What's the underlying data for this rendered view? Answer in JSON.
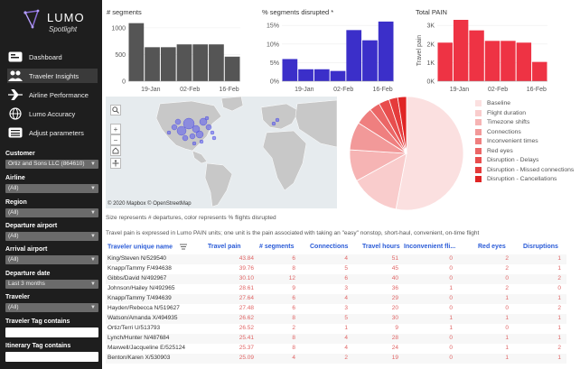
{
  "brand": {
    "title": "LUMO",
    "subtitle": "Spotlight"
  },
  "nav": [
    {
      "label": "Dashboard",
      "icon": "dashboard-icon"
    },
    {
      "label": "Traveler Insights",
      "icon": "people-icon"
    },
    {
      "label": "Airline Performance",
      "icon": "airplane-icon"
    },
    {
      "label": "Lumo Accuracy",
      "icon": "globe-icon"
    },
    {
      "label": "Adjust parameters",
      "icon": "sliders-icon"
    }
  ],
  "filters": {
    "customer": {
      "label": "Customer",
      "value": "Ortiz and Sons LLC (864610)"
    },
    "airline": {
      "label": "Airline",
      "value": "(All)"
    },
    "region": {
      "label": "Region",
      "value": "(All)"
    },
    "departure_airport": {
      "label": "Departure airport",
      "value": "(All)"
    },
    "arrival_airport": {
      "label": "Arrival airport",
      "value": "(All)"
    },
    "departure_date": {
      "label": "Departure date",
      "value": "Last 3 months"
    },
    "traveler": {
      "label": "Traveler",
      "value": "(All)"
    },
    "traveler_tag": {
      "label": "Traveler Tag contains"
    },
    "itinerary_tag": {
      "label": "Itinerary Tag contains"
    }
  },
  "chart_data": [
    {
      "type": "bar",
      "title": "# segments",
      "x_ticks": [
        "19-Jan",
        "02-Feb",
        "16-Feb"
      ],
      "y_ticks": [
        "0",
        "500",
        "1000"
      ],
      "ylim": [
        0,
        1300
      ],
      "values": [
        1230,
        720,
        720,
        780,
        780,
        780,
        520
      ],
      "color": "#555555"
    },
    {
      "type": "bar",
      "title": "% segments disrupted *",
      "x_ticks": [
        "19-Jan",
        "02-Feb",
        "16-Feb"
      ],
      "y_ticks": [
        "0%",
        "5%",
        "10%",
        "15%"
      ],
      "ylim": [
        0,
        18
      ],
      "values": [
        6.5,
        3.5,
        3.5,
        3.0,
        15.0,
        12.0,
        17.5
      ],
      "color": "#3b2fc9"
    },
    {
      "type": "bar",
      "title": "Total PAIN",
      "ylabel": "Travel pain",
      "x_ticks": [
        "19-Jan",
        "02-Feb",
        "16-Feb"
      ],
      "y_ticks": [
        "0K",
        "1K",
        "2K",
        "3K"
      ],
      "ylim": [
        0,
        3500
      ],
      "values": [
        2200,
        3500,
        2900,
        2300,
        2300,
        2200,
        1100
      ],
      "color": "#ee3344"
    },
    {
      "type": "pie",
      "categories": [
        "Baseline",
        "Flight duration",
        "Timezone shifts",
        "Connections",
        "Inconvenient times",
        "Red eyes",
        "Disruption - Delays",
        "Disruption - Missed connections",
        "Disruption - Cancellations"
      ],
      "values": [
        53,
        14,
        9,
        8,
        5,
        3,
        3,
        2.5,
        2.5
      ],
      "colors": [
        "#fbe0e0",
        "#f9cccc",
        "#f6b4b4",
        "#f29999",
        "#ef7f7f",
        "#eb6666",
        "#e84d4d",
        "#e53b3b",
        "#e02424"
      ]
    }
  ],
  "map": {
    "zoom_in": "+",
    "zoom_out": "−",
    "credit": "© 2020 Mapbox © OpenStreetMap"
  },
  "notes": {
    "size_note": "Size represents # departures, color represents % flights disrupted",
    "pain_note": "Travel pain is expressed in Lumo PAIN units; one unit is the pain associated with taking an \"easy\" nonstop, short-haul, convenient, on-time flight"
  },
  "table": {
    "headers": [
      "Traveler unique name",
      "Travel pain",
      "# segments",
      "Connections",
      "Travel hours",
      "Inconvenient fli...",
      "Red eyes",
      "Disruptions"
    ],
    "rows": [
      [
        "King/Steven N/529540",
        "43.84",
        "6",
        "4",
        "51",
        "0",
        "2",
        "1"
      ],
      [
        "Knapp/Tammy F/494638",
        "39.76",
        "8",
        "5",
        "45",
        "0",
        "2",
        "1"
      ],
      [
        "Gibbs/David N/492967",
        "30.10",
        "12",
        "6",
        "40",
        "0",
        "0",
        "2"
      ],
      [
        "Johnson/Hailey N/492965",
        "28.61",
        "9",
        "3",
        "36",
        "1",
        "2",
        "0"
      ],
      [
        "Knapp/Tammy T/494639",
        "27.64",
        "6",
        "4",
        "29",
        "0",
        "1",
        "1"
      ],
      [
        "Hayden/Rebecca N/519627",
        "27.48",
        "6",
        "3",
        "20",
        "0",
        "0",
        "2"
      ],
      [
        "Watson/Amanda X/494935",
        "26.62",
        "8",
        "5",
        "30",
        "1",
        "1",
        "1"
      ],
      [
        "Ortiz/Terri U/513793",
        "26.52",
        "2",
        "1",
        "9",
        "1",
        "0",
        "1"
      ],
      [
        "Lynch/Hunter N/487684",
        "25.41",
        "8",
        "4",
        "28",
        "0",
        "1",
        "1"
      ],
      [
        "Maxwell/Jacqueline E/525124",
        "25.37",
        "8",
        "4",
        "24",
        "0",
        "1",
        "2"
      ],
      [
        "Benton/Karen X/530903",
        "25.09",
        "4",
        "2",
        "19",
        "0",
        "1",
        "1"
      ]
    ]
  }
}
